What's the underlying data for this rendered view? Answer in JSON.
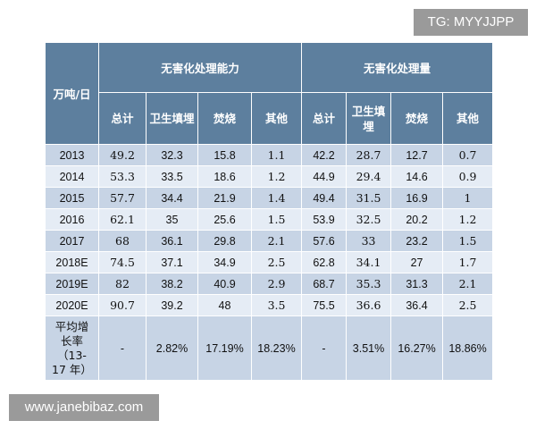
{
  "watermark_top": "TG: MYYJJPP",
  "watermark_bottom": "www.janebibaz.com",
  "chart_data": {
    "type": "table",
    "corner_header": "万吨/日",
    "group_headers": [
      "无害化处理能力",
      "无害化处理量"
    ],
    "columns": [
      "总计",
      "卫生填埋",
      "焚烧",
      "其他",
      "总计",
      "卫生填埋",
      "焚烧",
      "其他"
    ],
    "rows": [
      {
        "label": "2013",
        "values": [
          "49.2",
          "32.3",
          "15.8",
          "1.1",
          "42.2",
          "28.7",
          "12.7",
          "0.7"
        ]
      },
      {
        "label": "2014",
        "values": [
          "53.3",
          "33.5",
          "18.6",
          "1.2",
          "44.9",
          "29.4",
          "14.6",
          "0.9"
        ]
      },
      {
        "label": "2015",
        "values": [
          "57.7",
          "34.4",
          "21.9",
          "1.4",
          "49.4",
          "31.5",
          "16.9",
          "1"
        ]
      },
      {
        "label": "2016",
        "values": [
          "62.1",
          "35",
          "25.6",
          "1.5",
          "53.9",
          "32.5",
          "20.2",
          "1.2"
        ]
      },
      {
        "label": "2017",
        "values": [
          "68",
          "36.1",
          "29.8",
          "2.1",
          "57.6",
          "33",
          "23.2",
          "1.5"
        ]
      },
      {
        "label": "2018E",
        "values": [
          "74.5",
          "37.1",
          "34.9",
          "2.5",
          "62.8",
          "34.1",
          "27",
          "1.7"
        ]
      },
      {
        "label": "2019E",
        "values": [
          "82",
          "38.2",
          "40.9",
          "2.9",
          "68.7",
          "35.3",
          "31.3",
          "2.1"
        ]
      },
      {
        "label": "2020E",
        "values": [
          "90.7",
          "39.2",
          "48",
          "3.5",
          "75.5",
          "36.6",
          "36.4",
          "2.5"
        ]
      }
    ],
    "growth_row": {
      "label_lines": [
        "平均增",
        "长率",
        "（13-",
        "17 年）"
      ],
      "values": [
        "-",
        "2.82%",
        "17.19%",
        "18.23%",
        "-",
        "3.51%",
        "16.27%",
        "18.86%"
      ]
    }
  }
}
